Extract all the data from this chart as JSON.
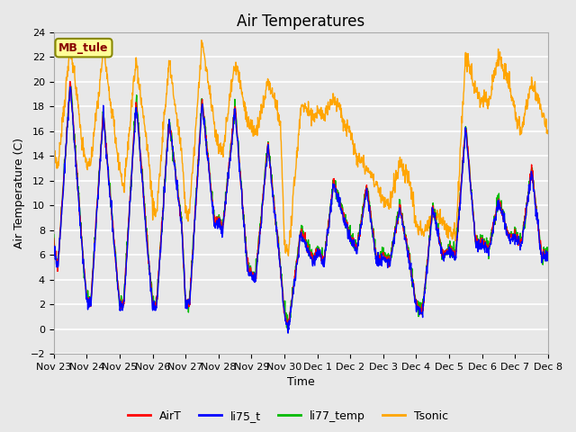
{
  "title": "Air Temperatures",
  "xlabel": "Time",
  "ylabel": "Air Temperature (C)",
  "ylim": [
    -2,
    24
  ],
  "yticks": [
    -2,
    0,
    2,
    4,
    6,
    8,
    10,
    12,
    14,
    16,
    18,
    20,
    22,
    24
  ],
  "xtick_labels": [
    "Nov 23",
    "Nov 24",
    "Nov 25",
    "Nov 26",
    "Nov 27",
    "Nov 28",
    "Nov 29",
    "Nov 30",
    "Dec 1",
    "Dec 2",
    "Dec 3",
    "Dec 4",
    "Dec 5",
    "Dec 6",
    "Dec 7",
    "Dec 8"
  ],
  "series_colors": {
    "AirT": "#ff0000",
    "li75_t": "#0000ff",
    "li77_temp": "#00bb00",
    "Tsonic": "#ffa500"
  },
  "line_width": 1.0,
  "plot_bg_color": "#e8e8e8",
  "label_box_color": "#ffff99",
  "label_box_text": "MB_tule",
  "label_box_text_color": "#880000",
  "label_box_edge_color": "#888800",
  "grid_color": "#ffffff",
  "title_fontsize": 12,
  "axis_fontsize": 9,
  "tick_fontsize": 8,
  "legend_fontsize": 9,
  "figsize": [
    6.4,
    4.8
  ],
  "dpi": 100
}
